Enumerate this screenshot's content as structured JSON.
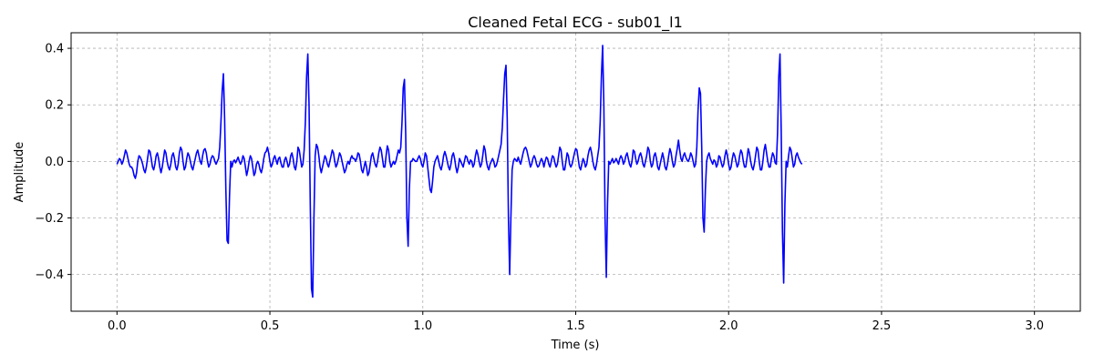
{
  "chart_data": {
    "type": "line",
    "title": "Cleaned Fetal ECG - sub01_l1",
    "xlabel": "Time (s)",
    "ylabel": "Amplitude",
    "xlim": [
      -0.15,
      3.15
    ],
    "ylim": [
      -0.53,
      0.455
    ],
    "x_ticks": [
      0.0,
      0.5,
      1.0,
      1.5,
      2.0,
      2.5,
      3.0
    ],
    "x_tick_labels": [
      "0.0",
      "0.5",
      "1.0",
      "1.5",
      "2.0",
      "2.5",
      "3.0"
    ],
    "y_ticks": [
      -0.4,
      -0.2,
      0.0,
      0.2,
      0.4
    ],
    "y_tick_labels": [
      "−0.4",
      "−0.2",
      "0.0",
      "0.2",
      "0.4"
    ],
    "grid": true,
    "series": [
      {
        "color": "#0000ff",
        "sample_step": 0.004,
        "x_start": 0.0,
        "y": [
          -0.01,
          0.0,
          0.01,
          0.005,
          -0.01,
          0.0,
          0.02,
          0.04,
          0.03,
          0.01,
          -0.01,
          -0.02,
          -0.02,
          -0.03,
          -0.05,
          -0.06,
          -0.04,
          0.0,
          0.02,
          0.015,
          0.005,
          -0.01,
          -0.03,
          -0.04,
          -0.02,
          0.01,
          0.04,
          0.035,
          0.01,
          -0.02,
          -0.03,
          -0.01,
          0.02,
          0.03,
          0.01,
          -0.02,
          -0.04,
          -0.02,
          0.01,
          0.04,
          0.03,
          0.0,
          -0.02,
          -0.03,
          -0.01,
          0.02,
          0.03,
          0.01,
          -0.02,
          -0.03,
          -0.01,
          0.03,
          0.05,
          0.04,
          0.0,
          -0.03,
          -0.02,
          0.01,
          0.03,
          0.02,
          0.0,
          -0.02,
          -0.03,
          -0.01,
          0.01,
          0.03,
          0.04,
          0.02,
          0.0,
          -0.01,
          0.02,
          0.04,
          0.045,
          0.03,
          0.0,
          -0.02,
          -0.01,
          0.01,
          0.02,
          0.015,
          0.0,
          -0.01,
          0.0,
          0.01,
          0.05,
          0.14,
          0.25,
          0.31,
          0.15,
          -0.1,
          -0.28,
          -0.29,
          -0.12,
          0.0,
          -0.02,
          0.0,
          0.005,
          -0.005,
          0.005,
          0.015,
          0.0,
          -0.01,
          0.0,
          0.02,
          0.01,
          -0.02,
          -0.05,
          -0.03,
          0.0,
          0.02,
          0.01,
          -0.02,
          -0.05,
          -0.04,
          -0.01,
          0.0,
          -0.01,
          -0.03,
          -0.04,
          -0.02,
          0.01,
          0.03,
          0.035,
          0.05,
          0.03,
          0.0,
          -0.02,
          -0.01,
          0.01,
          0.02,
          0.005,
          -0.01,
          0.01,
          0.015,
          -0.005,
          -0.02,
          -0.02,
          0.005,
          0.015,
          0.0,
          -0.02,
          -0.01,
          0.02,
          0.03,
          0.01,
          -0.02,
          -0.03,
          0.0,
          0.05,
          0.04,
          0.01,
          -0.02,
          -0.01,
          0.04,
          0.14,
          0.3,
          0.38,
          0.2,
          -0.15,
          -0.45,
          -0.48,
          -0.2,
          0.02,
          0.06,
          0.05,
          0.02,
          -0.02,
          -0.04,
          -0.02,
          0.0,
          0.02,
          0.01,
          -0.01,
          -0.02,
          0.0,
          0.02,
          0.04,
          0.03,
          0.0,
          -0.02,
          -0.01,
          0.01,
          0.03,
          0.02,
          0.0,
          -0.02,
          -0.04,
          -0.03,
          -0.01,
          0.0,
          -0.01,
          0.01,
          0.02,
          0.01,
          0.01,
          0.0,
          0.01,
          0.03,
          0.025,
          0.0,
          -0.03,
          -0.04,
          -0.02,
          0.0,
          -0.02,
          -0.05,
          -0.04,
          -0.01,
          0.02,
          0.03,
          0.01,
          -0.01,
          -0.02,
          0.0,
          0.03,
          0.05,
          0.04,
          0.01,
          -0.02,
          -0.02,
          0.02,
          0.055,
          0.04,
          0.0,
          -0.02,
          -0.01,
          0.0,
          -0.01,
          0.0,
          0.02,
          0.04,
          0.03,
          0.05,
          0.14,
          0.26,
          0.29,
          0.1,
          -0.2,
          -0.3,
          -0.1,
          0.0,
          0.0,
          0.01,
          0.005,
          0.0,
          0.0,
          0.01,
          0.02,
          0.01,
          -0.01,
          -0.02,
          0.0,
          0.03,
          0.02,
          -0.02,
          -0.06,
          -0.1,
          -0.11,
          -0.07,
          -0.02,
          0.0,
          0.01,
          0.02,
          0.0,
          -0.02,
          -0.03,
          -0.01,
          0.02,
          0.035,
          0.02,
          0.0,
          -0.02,
          -0.03,
          -0.01,
          0.02,
          0.03,
          0.01,
          -0.02,
          -0.04,
          -0.02,
          0.01,
          0.0,
          -0.01,
          -0.02,
          0.0,
          0.02,
          0.015,
          0.0,
          -0.01,
          0.005,
          0.0,
          -0.02,
          -0.01,
          0.02,
          0.04,
          0.025,
          0.0,
          -0.02,
          -0.01,
          0.02,
          0.055,
          0.04,
          0.0,
          -0.02,
          -0.03,
          -0.01,
          0.0,
          0.01,
          0.0,
          -0.02,
          -0.015,
          0.0,
          0.02,
          0.04,
          0.06,
          0.12,
          0.22,
          0.31,
          0.34,
          0.15,
          -0.2,
          -0.4,
          -0.2,
          -0.03,
          0.0,
          0.01,
          0.005,
          0.0,
          0.015,
          0.0,
          -0.01,
          0.01,
          0.03,
          0.045,
          0.05,
          0.04,
          0.02,
          0.0,
          -0.02,
          -0.01,
          0.01,
          0.02,
          0.01,
          -0.01,
          -0.02,
          -0.015,
          0.0,
          0.01,
          0.0,
          -0.02,
          0.0,
          0.015,
          0.01,
          -0.01,
          -0.02,
          0.0,
          0.02,
          0.015,
          -0.005,
          -0.02,
          -0.01,
          0.02,
          0.05,
          0.04,
          0.0,
          -0.03,
          -0.03,
          0.0,
          0.03,
          0.02,
          -0.01,
          -0.02,
          -0.01,
          0.01,
          0.03,
          0.045,
          0.04,
          0.01,
          -0.02,
          -0.03,
          -0.01,
          0.01,
          0.0,
          -0.02,
          -0.01,
          0.02,
          0.04,
          0.05,
          0.03,
          0.0,
          -0.02,
          -0.03,
          -0.01,
          0.02,
          0.05,
          0.14,
          0.3,
          0.41,
          0.2,
          -0.2,
          -0.41,
          -0.15,
          0.0,
          -0.01,
          0.0,
          0.01,
          -0.005,
          0.0,
          0.01,
          0.0,
          -0.01,
          0.01,
          0.02,
          0.01,
          -0.01,
          0.0,
          0.02,
          0.03,
          0.01,
          -0.01,
          -0.02,
          0.0,
          0.04,
          0.035,
          0.01,
          -0.01,
          0.0,
          0.02,
          0.03,
          0.015,
          -0.01,
          -0.02,
          0.0,
          0.02,
          0.05,
          0.04,
          0.0,
          -0.02,
          -0.01,
          0.02,
          0.03,
          0.01,
          -0.02,
          -0.03,
          -0.01,
          0.01,
          0.03,
          0.01,
          -0.02,
          -0.03,
          -0.01,
          0.02,
          0.045,
          0.03,
          0.0,
          -0.02,
          -0.01,
          0.02,
          0.045,
          0.075,
          0.04,
          0.01,
          0.0,
          0.02,
          0.03,
          0.015,
          0.005,
          0.0,
          0.01,
          0.03,
          0.02,
          0.0,
          -0.02,
          -0.01,
          0.05,
          0.18,
          0.26,
          0.24,
          0.05,
          -0.2,
          -0.25,
          -0.1,
          0.0,
          0.02,
          0.03,
          0.01,
          0.0,
          -0.01,
          0.005,
          0.0,
          -0.02,
          -0.01,
          0.02,
          0.015,
          -0.005,
          -0.02,
          -0.01,
          0.02,
          0.04,
          0.02,
          -0.01,
          -0.03,
          -0.02,
          0.01,
          0.03,
          0.02,
          0.0,
          -0.02,
          -0.01,
          0.02,
          0.04,
          0.03,
          0.0,
          -0.02,
          -0.02,
          0.01,
          0.045,
          0.03,
          0.0,
          -0.02,
          -0.03,
          -0.01,
          0.02,
          0.05,
          0.04,
          0.0,
          -0.03,
          -0.03,
          0.0,
          0.04,
          0.06,
          0.03,
          0.0,
          -0.02,
          -0.02,
          0.01,
          0.03,
          0.02,
          -0.005,
          -0.01,
          0.1,
          0.3,
          0.38,
          0.1,
          -0.25,
          -0.43,
          -0.15,
          0.0,
          -0.02,
          0.02,
          0.05,
          0.04,
          0.01,
          -0.02,
          -0.01,
          0.02,
          0.03,
          0.015,
          0.005,
          -0.005,
          -0.01
        ]
      }
    ]
  }
}
